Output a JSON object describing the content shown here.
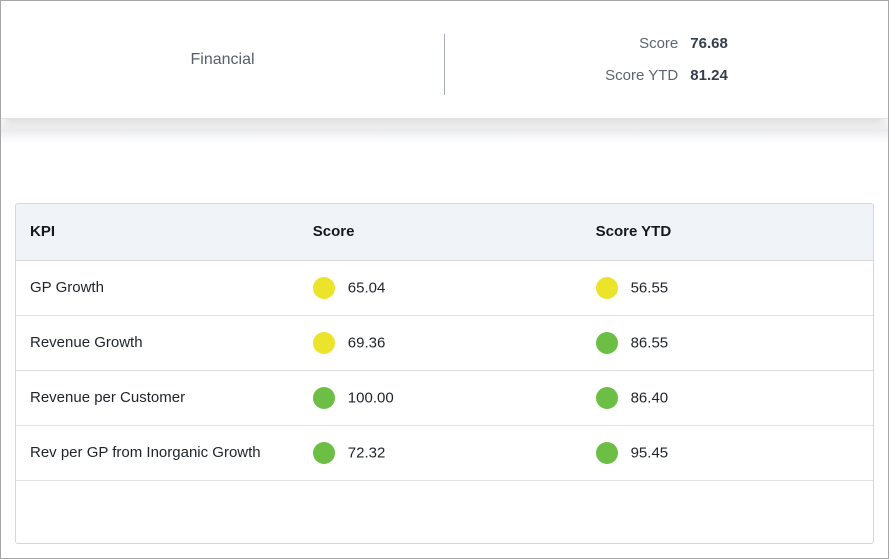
{
  "header": {
    "category": "Financial",
    "score_label": "Score",
    "score_value": "76.68",
    "score_ytd_label": "Score YTD",
    "score_ytd_value": "81.24"
  },
  "table": {
    "columns": [
      "KPI",
      "Score",
      "Score YTD"
    ],
    "rows": [
      {
        "kpi": "GP Growth",
        "score": "65.04",
        "score_status": "yellow",
        "score_ytd": "56.55",
        "score_ytd_status": "yellow"
      },
      {
        "kpi": "Revenue Growth",
        "score": "69.36",
        "score_status": "yellow",
        "score_ytd": "86.55",
        "score_ytd_status": "green"
      },
      {
        "kpi": "Revenue per Customer",
        "score": "100.00",
        "score_status": "green",
        "score_ytd": "86.40",
        "score_ytd_status": "green"
      },
      {
        "kpi": "Rev per GP from Inorganic Growth",
        "score": "72.32",
        "score_status": "green",
        "score_ytd": "95.45",
        "score_ytd_status": "green"
      }
    ]
  },
  "status_colors": {
    "yellow": "#ece32b",
    "green": "#6cbe44"
  }
}
